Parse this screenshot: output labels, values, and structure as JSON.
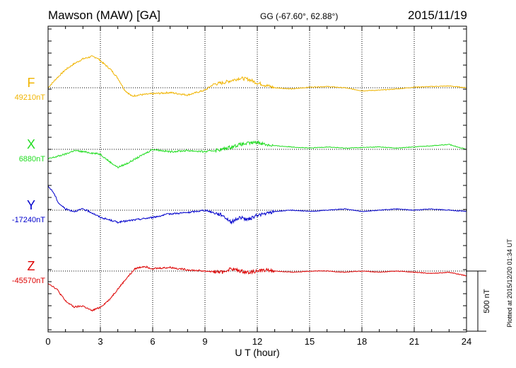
{
  "header": {
    "station": "Mawson (MAW)  [GA]",
    "coords": "GG (-67.60°,  62.88°)",
    "date": "2015/11/19"
  },
  "side_note": "Plotted at 2015/12/20 01:34 UT",
  "chart_data": {
    "type": "line",
    "xlabel": "U T (hour)",
    "xlim": [
      0,
      24
    ],
    "xticks": [
      "0",
      "3",
      "6",
      "9",
      "12",
      "15",
      "18",
      "21",
      "24"
    ],
    "scale_bar": {
      "label": "500 nT",
      "value_nT": 500
    },
    "grid": true,
    "series": [
      {
        "name": "F",
        "baseline_label": "49210nT",
        "color": "#f0b400",
        "x": [
          0,
          0.5,
          1,
          1.5,
          2,
          2.5,
          2.8,
          3.2,
          3.6,
          4,
          4.4,
          4.8,
          5.2,
          6,
          7,
          8,
          9,
          9.5,
          10,
          10.5,
          11,
          11.5,
          12,
          12.5,
          13,
          14,
          15,
          16,
          17,
          18,
          19,
          20,
          21,
          22,
          23,
          24
        ],
        "offset_nT": [
          0,
          80,
          150,
          200,
          240,
          260,
          250,
          200,
          150,
          80,
          -20,
          -70,
          -60,
          -50,
          -40,
          -60,
          -20,
          30,
          40,
          60,
          80,
          70,
          40,
          20,
          0,
          -10,
          5,
          10,
          0,
          -25,
          -20,
          -10,
          5,
          10,
          15,
          0
        ]
      },
      {
        "name": "X",
        "baseline_label": "6880nT",
        "color": "#22dd22",
        "x": [
          0,
          0.5,
          1,
          1.5,
          2,
          2.5,
          3,
          3.5,
          4,
          4.5,
          5,
          5.5,
          6,
          7,
          8,
          9,
          9.5,
          10,
          10.5,
          11,
          11.5,
          12,
          12.5,
          13,
          14,
          15,
          16,
          17,
          18,
          19,
          20,
          21,
          22,
          23,
          24
        ],
        "offset_nT": [
          -80,
          -60,
          -40,
          -10,
          -20,
          -30,
          -40,
          -100,
          -150,
          -120,
          -80,
          -40,
          0,
          -20,
          -10,
          -20,
          -10,
          0,
          20,
          40,
          50,
          60,
          40,
          30,
          20,
          10,
          20,
          10,
          15,
          20,
          10,
          20,
          30,
          40,
          0
        ]
      },
      {
        "name": "Y",
        "baseline_label": "-17240nT",
        "color": "#0000cc",
        "x": [
          0,
          0.3,
          0.6,
          1,
          1.5,
          2,
          2.5,
          3,
          3.5,
          4,
          5,
          6,
          7,
          8,
          9,
          9.5,
          10,
          10.5,
          11,
          11.5,
          12,
          12.5,
          13,
          14,
          15,
          16,
          17,
          18,
          19,
          20,
          21,
          22,
          23,
          24
        ],
        "offset_nT": [
          200,
          150,
          60,
          10,
          -10,
          10,
          -20,
          -60,
          -80,
          -100,
          -80,
          -60,
          -30,
          -20,
          0,
          -20,
          -40,
          -100,
          -60,
          -80,
          -40,
          -30,
          -10,
          0,
          -10,
          0,
          10,
          -10,
          0,
          10,
          0,
          10,
          0,
          -10
        ]
      },
      {
        "name": "Z",
        "baseline_label": "-45570nT",
        "color": "#dd0000",
        "x": [
          0,
          0.5,
          1,
          1.5,
          2,
          2.5,
          3,
          3.5,
          4,
          4.5,
          5,
          5.5,
          6,
          7,
          8,
          9,
          10,
          10.5,
          11,
          11.5,
          12,
          12.5,
          13,
          14,
          15,
          16,
          17,
          18,
          19,
          20,
          21,
          22,
          23,
          24
        ],
        "offset_nT": [
          -100,
          -150,
          -250,
          -300,
          -290,
          -330,
          -300,
          -240,
          -150,
          -60,
          20,
          40,
          20,
          30,
          10,
          0,
          -10,
          20,
          0,
          -10,
          0,
          10,
          0,
          -10,
          0,
          0,
          -10,
          0,
          -10,
          0,
          -10,
          -20,
          -10,
          -40
        ]
      }
    ]
  }
}
